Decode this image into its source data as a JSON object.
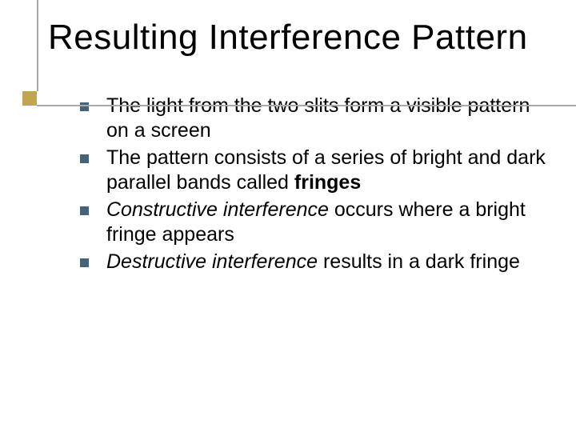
{
  "accent_color": "#c0a74e",
  "bullet_color": "#476177",
  "rule_color": "#a9a9a9",
  "title_fontsize": 44,
  "body_fontsize": 25,
  "background_color": "#ffffff",
  "text_color": "#000000",
  "title": "Resulting Interference Pattern",
  "bullets": [
    {
      "pre": "The light from the two slits form a visible pattern on a screen",
      "em": "",
      "emClass": "",
      "post": ""
    },
    {
      "pre": "The pattern consists of a series of bright and dark parallel bands called ",
      "em": "fringes",
      "emClass": "bold",
      "post": ""
    },
    {
      "pre": "",
      "em": "Constructive interference",
      "emClass": "ital",
      "post": " occurs where a bright fringe appears"
    },
    {
      "pre": "",
      "em": "Destructive interference",
      "emClass": "ital",
      "post": " results in a dark fringe"
    }
  ]
}
